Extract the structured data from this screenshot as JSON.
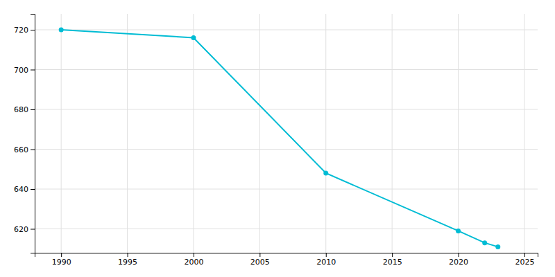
{
  "chart_data": {
    "type": "line",
    "x": [
      1990,
      2000,
      2010,
      2020,
      2022,
      2023
    ],
    "values": [
      720,
      716,
      648,
      619,
      613,
      611
    ],
    "color": "#00bcd4",
    "marker": "circle",
    "xlim": [
      1988,
      2026
    ],
    "ylim": [
      608,
      728
    ],
    "xticks": [
      1990,
      1995,
      2000,
      2005,
      2010,
      2015,
      2020,
      2025
    ],
    "yticks": [
      620,
      640,
      660,
      680,
      700,
      720
    ],
    "grid": true
  }
}
